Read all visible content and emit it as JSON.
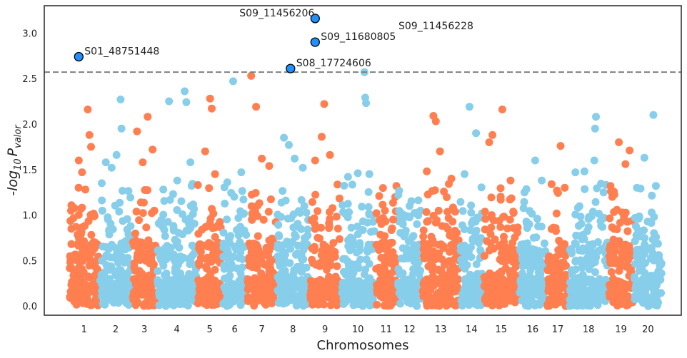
{
  "chart_data": {
    "type": "scatter",
    "title": "",
    "xlabel": "Chromosomes",
    "ylabel_main": "-log",
    "ylabel_sub": "10",
    "ylabel_p": "P",
    "ylabel_psub": "valor",
    "ylim": [
      -0.1,
      3.3
    ],
    "yticks": [
      0.0,
      0.5,
      1.0,
      1.5,
      2.0,
      2.5,
      3.0
    ],
    "ytick_labels": [
      "0.0",
      "0.5",
      "1.0",
      "1.5",
      "2.0",
      "2.5",
      "3.0"
    ],
    "threshold": 2.57,
    "grid": false,
    "colors": {
      "odd": "#ff7f50",
      "even": "#87ceeb",
      "highlight": "#1e90ff",
      "highlight_edge": "#000000",
      "threshold": "#808080"
    },
    "chromosomes": [
      {
        "label": "1",
        "start": 0,
        "end": 37
      },
      {
        "label": "2",
        "start": 37,
        "end": 77
      },
      {
        "label": "3",
        "start": 77,
        "end": 107
      },
      {
        "label": "4",
        "start": 107,
        "end": 156
      },
      {
        "label": "5",
        "start": 156,
        "end": 187
      },
      {
        "label": "6",
        "start": 187,
        "end": 217
      },
      {
        "label": "7",
        "start": 217,
        "end": 253
      },
      {
        "label": "8",
        "start": 253,
        "end": 293
      },
      {
        "label": "9",
        "start": 293,
        "end": 331
      },
      {
        "label": "10",
        "start": 331,
        "end": 373
      },
      {
        "label": "11",
        "start": 373,
        "end": 400
      },
      {
        "label": "12",
        "start": 400,
        "end": 430
      },
      {
        "label": "13",
        "start": 430,
        "end": 476
      },
      {
        "label": "14",
        "start": 476,
        "end": 505
      },
      {
        "label": "15",
        "start": 505,
        "end": 548
      },
      {
        "label": "16",
        "start": 548,
        "end": 582
      },
      {
        "label": "17",
        "start": 582,
        "end": 609
      },
      {
        "label": "18",
        "start": 609,
        "end": 657
      },
      {
        "label": "19",
        "start": 657,
        "end": 688
      },
      {
        "label": "20",
        "start": 688,
        "end": 723
      }
    ],
    "xlim": [
      -30,
      746
    ],
    "peaks": [
      {
        "x": 12,
        "y": 1.6
      },
      {
        "x": 16,
        "y": 1.47
      },
      {
        "x": 20,
        "y": 1.28
      },
      {
        "x": 23,
        "y": 2.16
      },
      {
        "x": 25,
        "y": 1.88
      },
      {
        "x": 27,
        "y": 1.75
      },
      {
        "x": 40,
        "y": 1.35
      },
      {
        "x": 45,
        "y": 1.58
      },
      {
        "x": 52,
        "y": 1.52
      },
      {
        "x": 58,
        "y": 1.66
      },
      {
        "x": 63,
        "y": 2.27
      },
      {
        "x": 64,
        "y": 1.95
      },
      {
        "x": 83,
        "y": 1.92
      },
      {
        "x": 90,
        "y": 1.58
      },
      {
        "x": 96,
        "y": 2.08
      },
      {
        "x": 102,
        "y": 1.72
      },
      {
        "x": 115,
        "y": 1.28
      },
      {
        "x": 122,
        "y": 2.25
      },
      {
        "x": 132,
        "y": 1.38
      },
      {
        "x": 141,
        "y": 2.36
      },
      {
        "x": 143,
        "y": 2.24
      },
      {
        "x": 148,
        "y": 1.58
      },
      {
        "x": 166,
        "y": 1.7
      },
      {
        "x": 172,
        "y": 2.28
      },
      {
        "x": 174,
        "y": 2.17
      },
      {
        "x": 178,
        "y": 1.45
      },
      {
        "x": 193,
        "y": 1.36
      },
      {
        "x": 200,
        "y": 2.47
      },
      {
        "x": 210,
        "y": 1.47
      },
      {
        "x": 222,
        "y": 2.53
      },
      {
        "x": 228,
        "y": 2.19
      },
      {
        "x": 235,
        "y": 1.62
      },
      {
        "x": 244,
        "y": 1.54
      },
      {
        "x": 262,
        "y": 1.85
      },
      {
        "x": 268,
        "y": 1.77
      },
      {
        "x": 275,
        "y": 1.62
      },
      {
        "x": 285,
        "y": 1.52
      },
      {
        "x": 300,
        "y": 1.6
      },
      {
        "x": 308,
        "y": 1.86
      },
      {
        "x": 311,
        "y": 2.22
      },
      {
        "x": 318,
        "y": 1.66
      },
      {
        "x": 340,
        "y": 1.42
      },
      {
        "x": 352,
        "y": 1.46
      },
      {
        "x": 360,
        "y": 2.57
      },
      {
        "x": 361,
        "y": 2.29
      },
      {
        "x": 362,
        "y": 2.23
      },
      {
        "x": 366,
        "y": 1.45
      },
      {
        "x": 378,
        "y": 1.21
      },
      {
        "x": 385,
        "y": 1.05
      },
      {
        "x": 395,
        "y": 0.95
      },
      {
        "x": 405,
        "y": 1.02
      },
      {
        "x": 415,
        "y": 1.1
      },
      {
        "x": 424,
        "y": 0.9
      },
      {
        "x": 436,
        "y": 1.48
      },
      {
        "x": 444,
        "y": 2.09
      },
      {
        "x": 447,
        "y": 2.03
      },
      {
        "x": 452,
        "y": 1.7
      },
      {
        "x": 466,
        "y": 1.4
      },
      {
        "x": 482,
        "y": 1.45
      },
      {
        "x": 488,
        "y": 2.19
      },
      {
        "x": 496,
        "y": 1.9
      },
      {
        "x": 512,
        "y": 1.8
      },
      {
        "x": 516,
        "y": 1.88
      },
      {
        "x": 528,
        "y": 2.16
      },
      {
        "x": 538,
        "y": 1.38
      },
      {
        "x": 555,
        "y": 1.25
      },
      {
        "x": 568,
        "y": 1.6
      },
      {
        "x": 576,
        "y": 1.38
      },
      {
        "x": 588,
        "y": 1.34
      },
      {
        "x": 599,
        "y": 1.76
      },
      {
        "x": 604,
        "y": 1.3
      },
      {
        "x": 617,
        "y": 1.47
      },
      {
        "x": 628,
        "y": 1.48
      },
      {
        "x": 640,
        "y": 1.6
      },
      {
        "x": 642,
        "y": 2.08
      },
      {
        "x": 641,
        "y": 1.95
      },
      {
        "x": 662,
        "y": 1.2
      },
      {
        "x": 670,
        "y": 1.8
      },
      {
        "x": 678,
        "y": 1.56
      },
      {
        "x": 683,
        "y": 1.71
      },
      {
        "x": 692,
        "y": 1.3
      },
      {
        "x": 701,
        "y": 1.63
      },
      {
        "x": 712,
        "y": 2.1
      },
      {
        "x": 715,
        "y": 1.32
      }
    ],
    "significant": [
      {
        "name": "S01_48751448",
        "x": 12,
        "y": 2.74,
        "label_dx": 4,
        "label_dy": -3
      },
      {
        "name": "S09_11456206",
        "x": 300,
        "y": 3.16,
        "label_dx": -110,
        "label_dy": -3
      },
      {
        "name": "S09_11680805",
        "x": 300,
        "y": 2.9,
        "label_dx": 4,
        "label_dy": -3
      },
      {
        "name": "S08_17724606",
        "x": 270,
        "y": 2.61,
        "label_dx": 4,
        "label_dy": -3
      },
      {
        "name": "S09_11456228",
        "x": 393,
        "y": 3.0,
        "label_dx": 0,
        "label_dy": 0,
        "no_marker": true
      }
    ]
  }
}
